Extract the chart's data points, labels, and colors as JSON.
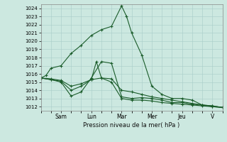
{
  "title": "Pression niveau de la mer( hPa )",
  "bg_color": "#cce8e0",
  "grid_color": "#a8ccc8",
  "line_color": "#1a5c2a",
  "ylim": [
    1011.5,
    1024.5
  ],
  "yticks": [
    1012,
    1013,
    1014,
    1015,
    1016,
    1017,
    1018,
    1019,
    1020,
    1021,
    1022,
    1023,
    1024
  ],
  "x_day_labels": [
    "Sam",
    "Lun",
    "Mar",
    "Mer",
    "Jeu",
    "V"
  ],
  "x_day_positions": [
    16,
    40,
    64,
    88,
    112,
    136
  ],
  "xlim": [
    0,
    144
  ],
  "lines": [
    {
      "x": [
        0,
        4,
        8,
        16,
        24,
        32,
        40,
        48,
        56,
        64,
        68,
        72,
        80,
        88,
        96,
        104,
        112,
        120,
        128,
        136,
        144
      ],
      "y": [
        1015.5,
        1015.8,
        1016.7,
        1017.0,
        1018.5,
        1019.5,
        1020.7,
        1021.4,
        1021.8,
        1024.3,
        1023.0,
        1021.0,
        1018.3,
        1014.5,
        1013.5,
        1013.0,
        1013.0,
        1012.8,
        1012.2,
        1012.0,
        1011.9
      ]
    },
    {
      "x": [
        0,
        8,
        16,
        24,
        32,
        40,
        48,
        56,
        64,
        72,
        80,
        88,
        96,
        104,
        112,
        120,
        128,
        136,
        144
      ],
      "y": [
        1015.5,
        1015.3,
        1015.0,
        1013.3,
        1013.8,
        1015.5,
        1017.5,
        1017.3,
        1013.2,
        1013.0,
        1013.1,
        1013.0,
        1012.8,
        1012.5,
        1012.5,
        1012.3,
        1012.2,
        1012.1,
        1011.9
      ]
    },
    {
      "x": [
        0,
        8,
        16,
        24,
        32,
        40,
        48,
        56,
        64,
        72,
        80,
        88,
        96,
        104,
        112,
        120,
        128,
        136,
        144
      ],
      "y": [
        1015.5,
        1015.4,
        1015.2,
        1014.5,
        1014.8,
        1015.3,
        1015.5,
        1015.4,
        1014.0,
        1013.8,
        1013.5,
        1013.2,
        1013.0,
        1012.8,
        1012.6,
        1012.4,
        1012.2,
        1012.1,
        1011.9
      ]
    },
    {
      "x": [
        0,
        8,
        16,
        24,
        32,
        40,
        44,
        48,
        56,
        64,
        72,
        80,
        88,
        96,
        104,
        112,
        120,
        128,
        136,
        144
      ],
      "y": [
        1015.5,
        1015.3,
        1015.1,
        1014.0,
        1014.5,
        1015.3,
        1017.5,
        1015.5,
        1015.0,
        1013.0,
        1012.8,
        1012.8,
        1012.7,
        1012.5,
        1012.4,
        1012.3,
        1012.2,
        1012.1,
        1012.0,
        1011.9
      ]
    }
  ]
}
